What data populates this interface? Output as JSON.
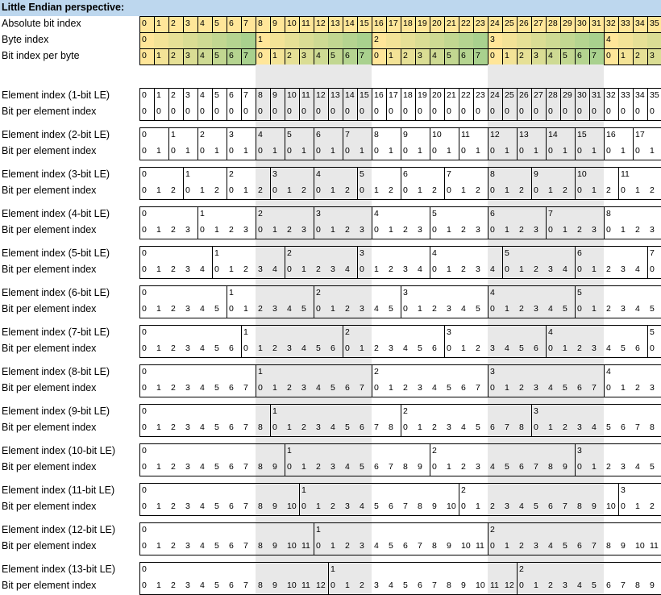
{
  "title": "Little Endian perspective:",
  "header_labels": {
    "absolute": "Absolute bit index",
    "byte": "Byte index",
    "bitbyte": "Bit index per byte"
  },
  "element_label_template": "Element index ({n}-bit LE)",
  "bit_label": "Bit per element index",
  "total_bits": 36,
  "element_widths": [
    1,
    2,
    3,
    4,
    5,
    6,
    7,
    8,
    9,
    10,
    11,
    12,
    13
  ],
  "colors": {
    "title_bg": "#bdd7ee",
    "absolute_bg": "#ffe699",
    "byte_gradient_start": "#ffe699",
    "byte_gradient_end": "#a9d18e",
    "shade": "#e8e8e8",
    "grid": "#000000"
  }
}
